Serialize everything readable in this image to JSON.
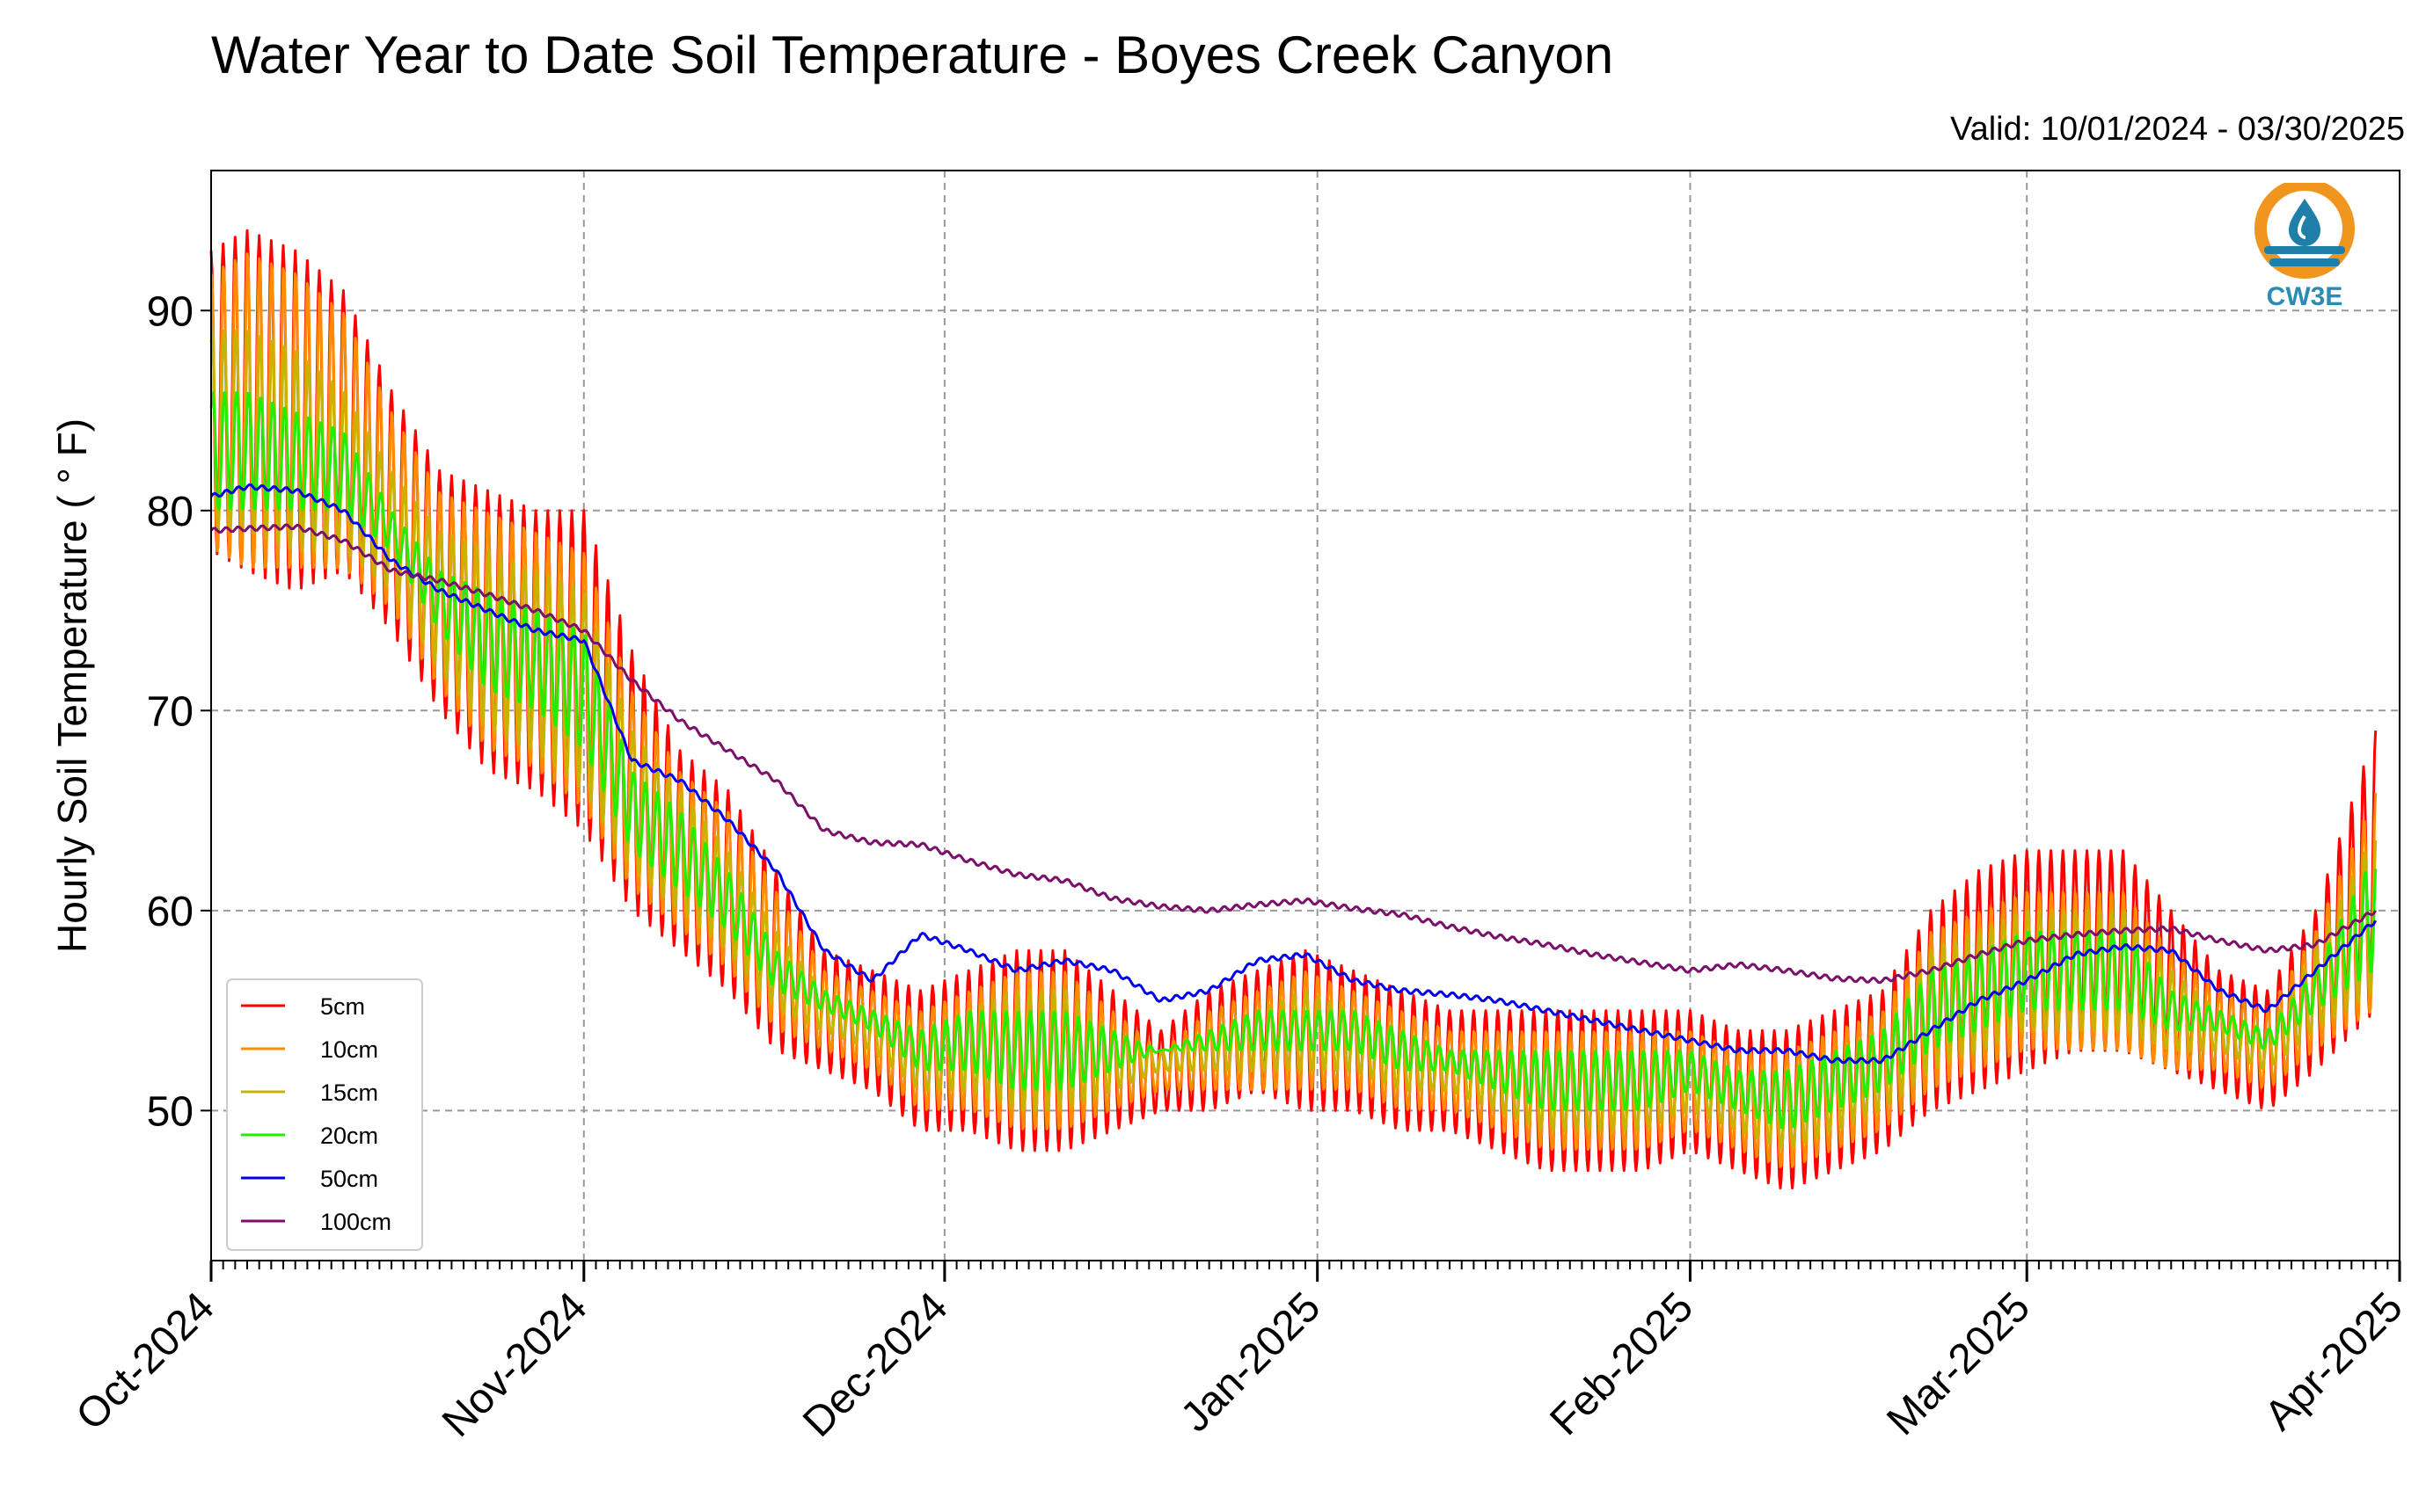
{
  "chart_data": {
    "type": "line",
    "title": "Water Year to Date Soil Temperature - Boyes Creek Canyon",
    "subtitle": "Valid: 10/01/2024 - 03/30/2025",
    "xlabel": "",
    "ylabel": "Hourly Soil Temperature ( ° F)",
    "x_range": [
      "2024-10-01",
      "2025-04-01"
    ],
    "ylim": [
      42.5,
      97
    ],
    "y_ticks": [
      50,
      60,
      70,
      80,
      90
    ],
    "x_ticks": [
      "Oct-2024",
      "Nov-2024",
      "Dec-2024",
      "Jan-2025",
      "Feb-2025",
      "Mar-2025",
      "Apr-2025"
    ],
    "grid": true,
    "legend_position": "lower-left",
    "x": [
      "2024-10-01",
      "2024-10-04",
      "2024-10-08",
      "2024-10-12",
      "2024-10-16",
      "2024-10-20",
      "2024-10-24",
      "2024-10-28",
      "2024-11-01",
      "2024-11-05",
      "2024-11-09",
      "2024-11-13",
      "2024-11-17",
      "2024-11-21",
      "2024-11-25",
      "2024-11-29",
      "2024-12-03",
      "2024-12-07",
      "2024-12-11",
      "2024-12-15",
      "2024-12-19",
      "2024-12-23",
      "2024-12-27",
      "2024-12-31",
      "2025-01-04",
      "2025-01-08",
      "2025-01-12",
      "2025-01-16",
      "2025-01-20",
      "2025-01-24",
      "2025-01-28",
      "2025-02-01",
      "2025-02-05",
      "2025-02-09",
      "2025-02-13",
      "2025-02-17",
      "2025-02-21",
      "2025-02-25",
      "2025-03-01",
      "2025-03-05",
      "2025-03-09",
      "2025-03-13",
      "2025-03-17",
      "2025-03-21",
      "2025-03-25",
      "2025-03-30"
    ],
    "series": [
      {
        "name": "5cm",
        "color": "#ff0000",
        "depth": "shallow",
        "min": [
          78,
          77,
          76,
          77,
          74,
          70,
          67,
          66,
          64,
          60,
          58,
          56,
          53,
          52,
          51,
          49,
          49,
          48,
          48,
          49,
          50,
          50,
          51,
          50,
          50,
          49,
          49,
          48,
          47,
          47,
          47,
          48,
          47,
          46,
          47,
          48,
          50,
          51,
          52,
          53,
          53,
          52,
          51,
          50,
          52,
          55
        ],
        "max": [
          93,
          94,
          93,
          91,
          86,
          82,
          81,
          80,
          80,
          73,
          68,
          66,
          62,
          58,
          57,
          56,
          57,
          58,
          58,
          56,
          54,
          56,
          57,
          58,
          57,
          56,
          55,
          55,
          55,
          55,
          55,
          55,
          54,
          54,
          55,
          56,
          60,
          62,
          63,
          63,
          63,
          60,
          57,
          56,
          60,
          69
        ]
      },
      {
        "name": "10cm",
        "color": "#ff8c00",
        "depth": "shallow",
        "min": [
          78,
          77,
          77,
          77,
          75,
          71,
          68,
          67,
          65,
          61,
          59,
          57,
          54,
          53,
          52,
          50,
          50,
          49,
          49,
          50,
          51,
          51,
          51,
          51,
          51,
          50,
          50,
          49,
          48,
          48,
          48,
          49,
          48,
          47,
          48,
          49,
          51,
          52,
          53,
          53,
          53,
          52,
          52,
          51,
          53,
          55
        ],
        "max": [
          92,
          93,
          92,
          90,
          85,
          81,
          80,
          79,
          78,
          71,
          67,
          65,
          61,
          57,
          56,
          55,
          56,
          57,
          57,
          55,
          53,
          55,
          56,
          57,
          56,
          55,
          54,
          54,
          54,
          54,
          54,
          54,
          53,
          53,
          54,
          55,
          59,
          60,
          61,
          61,
          61,
          58,
          56,
          55,
          59,
          66
        ]
      },
      {
        "name": "15cm",
        "color": "#c8b400",
        "depth": "mid",
        "min": [
          79,
          79,
          78,
          78,
          76,
          72,
          69,
          68,
          66,
          62,
          60,
          58,
          55,
          54,
          53,
          51,
          51,
          50,
          50,
          51,
          52,
          52,
          52,
          52,
          52,
          51,
          51,
          50,
          49,
          49,
          49,
          50,
          49,
          48,
          49,
          50,
          52,
          53,
          54,
          54,
          54,
          53,
          53,
          52,
          54,
          56
        ],
        "max": [
          89,
          89,
          88,
          86,
          82,
          79,
          78,
          77,
          76,
          69,
          66,
          63,
          59,
          56,
          55,
          54,
          55,
          56,
          56,
          54,
          53,
          54,
          55,
          56,
          55,
          54,
          53,
          53,
          53,
          53,
          53,
          53,
          52,
          52,
          53,
          54,
          58,
          59,
          60,
          60,
          60,
          57,
          55,
          54,
          58,
          64
        ]
      },
      {
        "name": "20cm",
        "color": "#22ee00",
        "depth": "mid",
        "min": [
          80,
          80,
          80,
          80,
          78,
          74,
          71,
          70,
          68,
          63,
          61,
          59,
          56,
          55,
          54,
          52,
          52,
          51,
          51,
          52,
          53,
          53,
          53,
          53,
          53,
          52,
          52,
          51,
          50,
          50,
          50,
          51,
          50,
          49,
          50,
          51,
          53,
          54,
          55,
          55,
          55,
          54,
          54,
          53,
          55,
          57
        ],
        "max": [
          86,
          86,
          85,
          84,
          80,
          77,
          76,
          75,
          74,
          67,
          65,
          62,
          58,
          56,
          55,
          54,
          55,
          55,
          55,
          54,
          53,
          54,
          55,
          55,
          55,
          54,
          53,
          53,
          53,
          53,
          53,
          53,
          52,
          52,
          53,
          54,
          57,
          58,
          59,
          59,
          59,
          56,
          55,
          54,
          57,
          63
        ]
      },
      {
        "name": "50cm",
        "color": "#0000ee",
        "depth": "deep",
        "values": [
          80.7,
          81.2,
          81.0,
          80.0,
          77.5,
          76.0,
          75.0,
          74.0,
          73.5,
          67.5,
          66.5,
          64.5,
          62.0,
          58.0,
          56.5,
          58.8,
          58.0,
          57.0,
          57.5,
          57.0,
          55.5,
          56.0,
          57.5,
          57.8,
          56.5,
          56.0,
          55.8,
          55.5,
          55.0,
          54.5,
          54.0,
          53.5,
          53.0,
          53.0,
          52.5,
          52.5,
          54.0,
          55.5,
          56.5,
          57.8,
          58.2,
          58.0,
          56.0,
          55.0,
          57.0,
          59.5
        ]
      },
      {
        "name": "100cm",
        "color": "#7b0f6a",
        "depth": "deep",
        "values": [
          79.0,
          79.1,
          79.2,
          78.5,
          77.0,
          76.5,
          75.8,
          75.0,
          74.0,
          71.5,
          69.5,
          68.0,
          66.5,
          64.0,
          63.4,
          63.3,
          62.5,
          61.8,
          61.5,
          60.6,
          60.2,
          60.0,
          60.3,
          60.5,
          60.1,
          59.8,
          59.2,
          58.7,
          58.3,
          57.8,
          57.4,
          57.0,
          57.3,
          57.0,
          56.6,
          56.5,
          57.0,
          57.8,
          58.5,
          58.8,
          59.0,
          59.1,
          58.5,
          58.0,
          58.3,
          60.0
        ]
      }
    ]
  },
  "logo": {
    "text": "CW3E",
    "name": "cw3e-logo",
    "ring_color": "#f0961e",
    "wave_color": "#1f7fa8"
  }
}
